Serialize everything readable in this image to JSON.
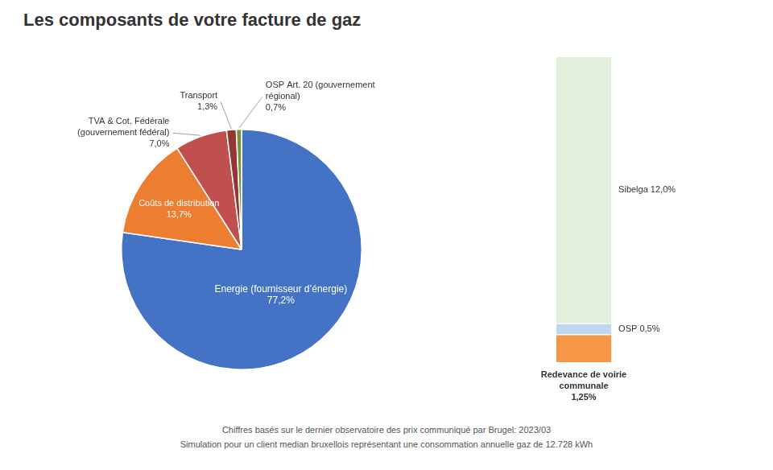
{
  "chart_data": [
    {
      "type": "pie",
      "title": "Les composants de votre facture de gaz",
      "categories": [
        "Energie (fournisseur d’énergie)",
        "Coûts de distribution",
        "TVA & Cot. Fédérale\n(gouvernement fédéral)",
        "Transport",
        "OSP Art. 20 (gouvernement\nrégional)"
      ],
      "values": [
        77.2,
        13.7,
        7.0,
        1.3,
        0.7
      ],
      "value_labels": [
        "77,2%",
        "13,7%",
        "7,0%",
        "1,3%",
        "0,7%"
      ],
      "colors": [
        "#4472C4",
        "#ED7D31",
        "#C0504D",
        "#943634",
        "#76923C"
      ],
      "data_labels": true,
      "annotations": [
        "Chiffres basés sur le dernier observatoire des prix communiqué par Brugel: 2023/03",
        "Simulation pour un client median bruxellois représentant une consommation annuelle gaz de 12.728 kWh"
      ]
    },
    {
      "type": "bar",
      "stacked": true,
      "categories": [
        null
      ],
      "series": [
        {
          "name": "Sibelga",
          "color": "#E2EFDA",
          "values": [
            12.0
          ],
          "value_labels": [
            "12,0%"
          ]
        },
        {
          "name": "OSP",
          "color": "#BDD7EE",
          "values": [
            0.5
          ],
          "value_labels": [
            "0,5%"
          ]
        },
        {
          "name": "Redevance de voirie\ncommunale",
          "color": "#F79646",
          "values": [
            1.25
          ],
          "value_labels": [
            "1,25%"
          ]
        }
      ],
      "ylim": [
        0,
        13.75
      ],
      "grid": false,
      "tick_labels": false,
      "data_labels": true
    }
  ]
}
